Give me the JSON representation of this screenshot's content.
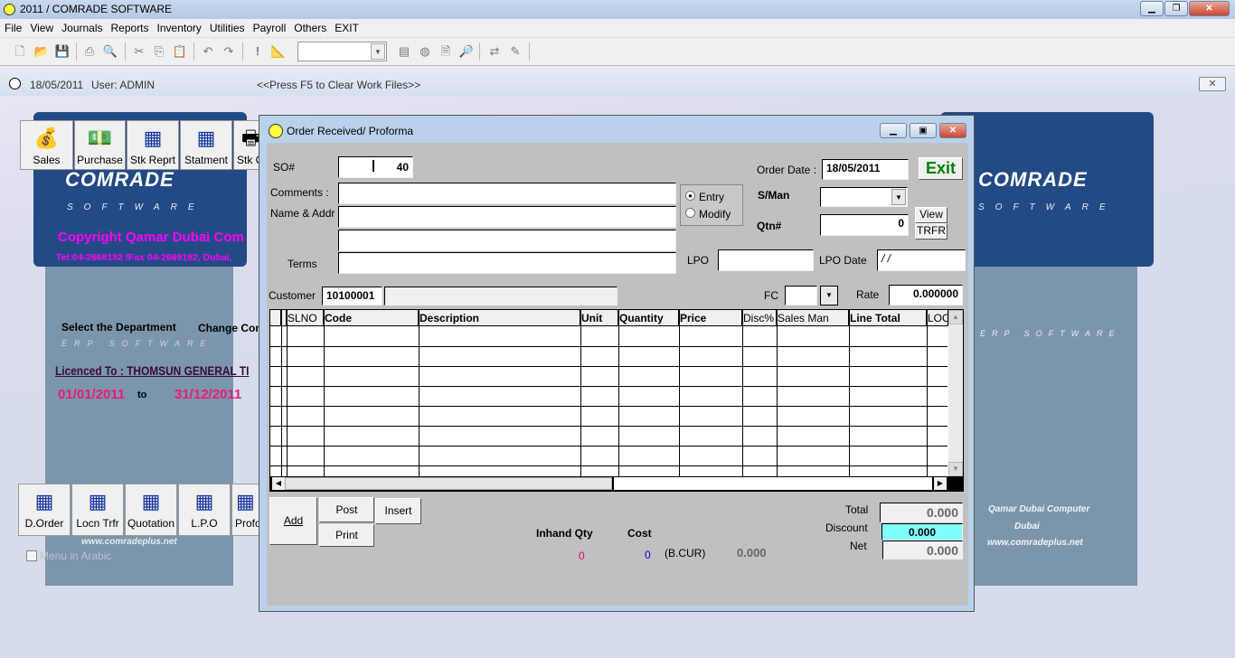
{
  "window": {
    "title": "2011 / COMRADE SOFTWARE"
  },
  "menu": [
    "File",
    "View",
    "Journals",
    "Reports",
    "Inventory",
    "Utilities",
    "Payroll",
    "Others",
    "EXIT"
  ],
  "toolbar": {
    "icons": [
      "new-icon",
      "open-icon",
      "save-icon",
      "print-icon",
      "print-preview-icon",
      "cut-icon",
      "copy-icon",
      "paste-icon",
      "undo-icon",
      "redo-icon",
      "exclamation-icon",
      "chart-icon",
      "list-icon",
      "globe-icon",
      "properties-icon",
      "find-icon",
      "arrows-icon",
      "edit-icon"
    ],
    "combo_value": ""
  },
  "status": {
    "date": "18/05/2011",
    "user": "User:  ADMIN",
    "hint": "<<Press F5 to Clear Work Files>>"
  },
  "main": {
    "top_buttons": [
      {
        "label": "Sales",
        "icon": "money-bag-icon"
      },
      {
        "label": "Purchase",
        "icon": "money-hand-icon"
      },
      {
        "label": "Stk Reprt",
        "icon": "report-icon"
      },
      {
        "label": "Statment",
        "icon": "report-icon"
      },
      {
        "label": "Stk C",
        "icon": "printer-icon"
      }
    ],
    "bottom_buttons": [
      {
        "label": "D.Order"
      },
      {
        "label": "Locn Trfr"
      },
      {
        "label": "Quotation"
      },
      {
        "label": "L.P.O"
      },
      {
        "label": "Profo"
      }
    ],
    "logo": "COMRADE",
    "logo_sub": "SOFTWARE",
    "erp": "ERP SOFTWARE",
    "copyright": "Copyright  Qamar Dubai Com",
    "contact": "Tel:04-2668182 /Fax 04-2669192, Dubai,",
    "select_department": "Select the Department",
    "change_company": "Change Con",
    "licensed": "Licenced To : THOMSUN GENERAL TI",
    "date_from": "01/01/2011",
    "date_to_label": "to",
    "date_to": "31/12/2011",
    "website": "www.comradeplus.net",
    "menu_arabic": "Menu in Arabic",
    "menu_arabic_checked": false,
    "right_company": "Qamar Dubai Computer",
    "right_city": "Dubai",
    "right_website": "www.comradeplus.net"
  },
  "dialog": {
    "title": "Order Received/ Proforma",
    "so_label": "SO#",
    "so_value": "40",
    "comments_label": "Comments :",
    "name_label": "Name & Addr",
    "terms_label": "Terms",
    "mode_options": [
      "Entry",
      "Modify"
    ],
    "mode_selected": "Entry",
    "order_date_label": "Order Date :",
    "order_date": "18/05/2011",
    "exit": "Exit",
    "sman_label": "S/Man",
    "sman_value": "",
    "qtn_label": "Qtn#",
    "qtn_value": "0",
    "view": "View",
    "trfr": "TRFR",
    "lpo_label": "LPO",
    "lpo_value": "",
    "lpo_date_label": "LPO Date",
    "lpo_date": " / /",
    "customer_label": "Customer",
    "customer_code": "10100001",
    "customer_name": "",
    "fc_label": "FC",
    "fc_value": "",
    "rate_label": "Rate",
    "rate_value": "0.000000",
    "columns": [
      "SLNO",
      "Code",
      "Description",
      "Unit",
      "Quantity",
      "Price",
      "Disc%",
      "Sales Man",
      "Line Total",
      "LOC"
    ],
    "add": "Add",
    "post": "Post",
    "insert": "Insert",
    "print": "Print",
    "inhand_label": "Inhand Qty",
    "inhand_value": "0",
    "cost_label": "Cost",
    "cost_value": "0",
    "bcur_label": "(B.CUR)",
    "bcur_value": "0.000",
    "total_label": "Total",
    "total": "0.000",
    "discount_label": "Discount",
    "discount": "0.000",
    "net_label": "Net",
    "net": "0.000",
    "colors": {
      "discount_bg": "#80ffff",
      "inhand": "#e0006a",
      "cost": "#0000ff",
      "exit": "#008000"
    }
  }
}
